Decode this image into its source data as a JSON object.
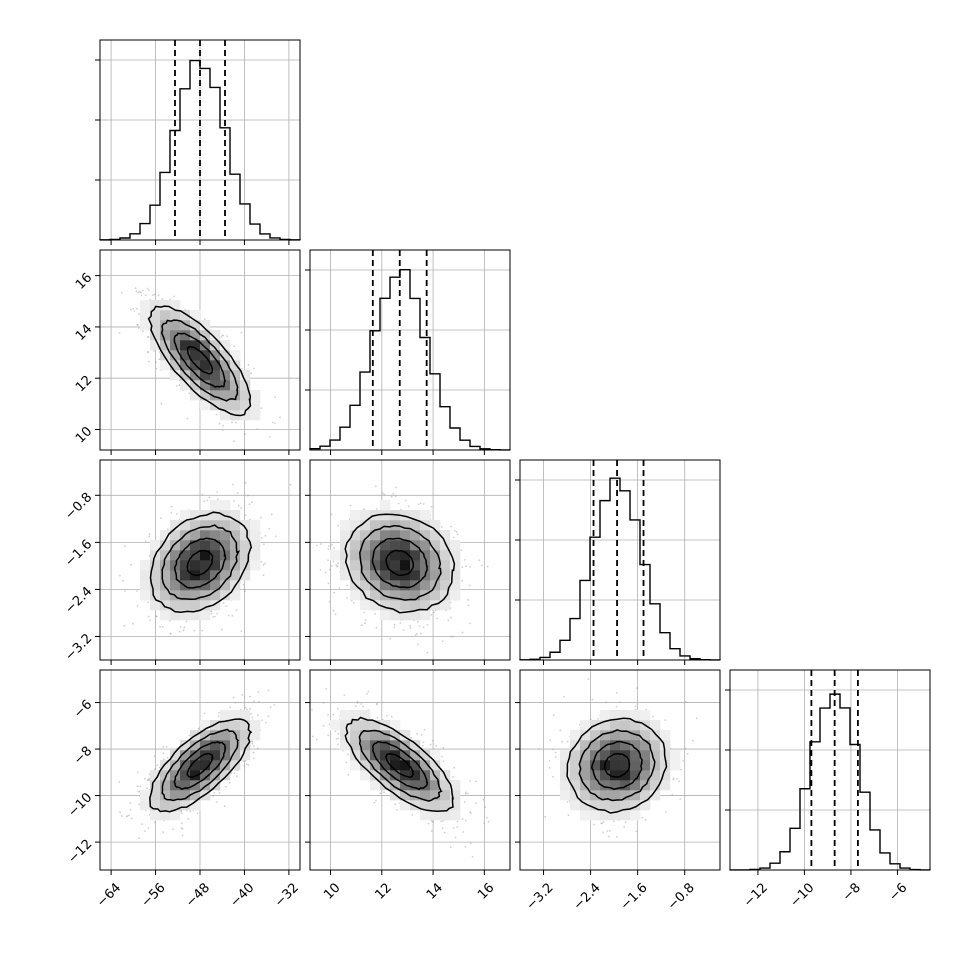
{
  "chart_data": {
    "type": "corner",
    "title": "",
    "grid": true,
    "colors": {
      "histogram": "#000000",
      "contour": "#000000",
      "points": "#9a9a9a",
      "grid": "#b0b0b0"
    },
    "parameters": [
      {
        "index": 0,
        "range": [
          -66,
          -30
        ],
        "ticks": [
          -64,
          -56,
          -48,
          -40,
          -32
        ],
        "tick_labels": [
          "−64",
          "−56",
          "−48",
          "−40",
          "−32"
        ],
        "mean": -48.0,
        "sd": 4.5,
        "quantiles": [
          -52.5,
          -48.0,
          -43.5
        ],
        "y_ticks": [],
        "y_tick_labels": []
      },
      {
        "index": 1,
        "range": [
          9.2,
          17.0
        ],
        "ticks": [
          10,
          12,
          14,
          16
        ],
        "tick_labels": [
          "10",
          "12",
          "14",
          "16"
        ],
        "mean": 12.7,
        "sd": 1.05,
        "quantiles": [
          11.65,
          12.7,
          13.75
        ],
        "y_ticks": [
          10,
          12,
          14,
          16
        ],
        "y_tick_labels": [
          "10",
          "12",
          "14",
          "16"
        ]
      },
      {
        "index": 2,
        "range": [
          -3.6,
          -0.2
        ],
        "ticks": [
          -3.2,
          -2.4,
          -1.6,
          -0.8
        ],
        "tick_labels": [
          "−3.2",
          "−2.4",
          "−1.6",
          "−0.8"
        ],
        "mean": -1.95,
        "sd": 0.42,
        "quantiles": [
          -2.35,
          -1.95,
          -1.5
        ],
        "y_ticks": [
          -3.2,
          -2.4,
          -1.6,
          -0.8
        ],
        "y_tick_labels": [
          "−3.2",
          "−2.4",
          "−1.6",
          "−0.8"
        ]
      },
      {
        "index": 3,
        "range": [
          -13.2,
          -4.6
        ],
        "ticks": [
          -12,
          -10,
          -8,
          -6
        ],
        "tick_labels": [
          "−12",
          "−10",
          "−8",
          "−6"
        ],
        "mean": -8.7,
        "sd": 1.0,
        "quantiles": [
          -9.7,
          -8.7,
          -7.7
        ],
        "y_ticks": [
          -12,
          -10,
          -8,
          -6
        ],
        "y_tick_labels": [
          "−12",
          "−10",
          "−8",
          "−6"
        ]
      }
    ],
    "correlations": [
      {
        "pair": [
          0,
          1
        ],
        "rho": -0.75
      },
      {
        "pair": [
          0,
          2
        ],
        "rho": 0.3
      },
      {
        "pair": [
          1,
          2
        ],
        "rho": -0.15
      },
      {
        "pair": [
          0,
          3
        ],
        "rho": 0.7
      },
      {
        "pair": [
          1,
          3
        ],
        "rho": -0.72
      },
      {
        "pair": [
          2,
          3
        ],
        "rho": 0.1
      }
    ],
    "contour_levels": [
      0.5,
      1.0,
      1.5,
      2.0
    ]
  }
}
